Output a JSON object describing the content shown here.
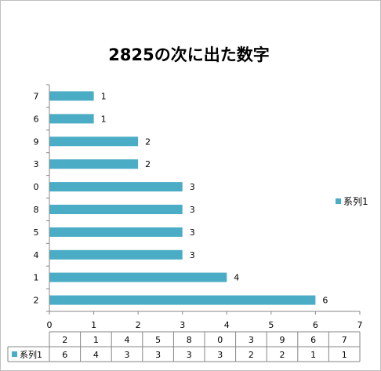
{
  "chart_data": {
    "type": "bar",
    "orientation": "horizontal",
    "title": "2825の次に出た数字",
    "categories": [
      "2",
      "1",
      "4",
      "5",
      "8",
      "0",
      "3",
      "9",
      "6",
      "7"
    ],
    "series": [
      {
        "name": "系列1",
        "values": [
          6,
          4,
          3,
          3,
          3,
          3,
          2,
          2,
          1,
          1
        ]
      }
    ],
    "xlim": [
      0,
      7
    ],
    "x_ticks": [
      "0",
      "1",
      "2",
      "3",
      "4",
      "5",
      "6",
      "7"
    ],
    "grid": false,
    "legend_position": "right",
    "data_table": true,
    "colors": {
      "series": "#4bacc6",
      "axis": "#868686",
      "table_border": "#868686"
    }
  }
}
